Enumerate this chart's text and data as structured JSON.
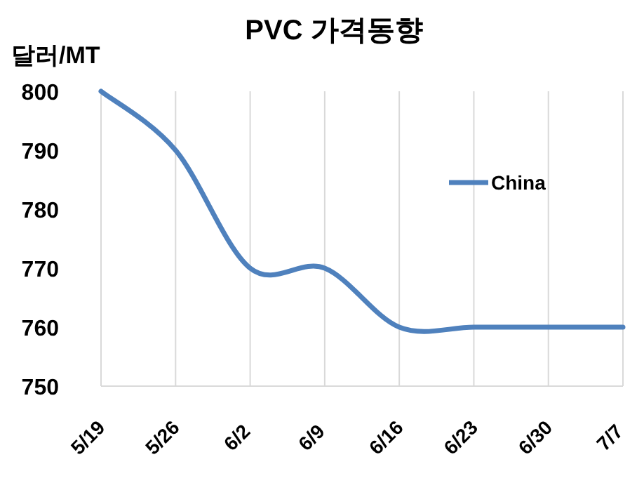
{
  "chart_data": {
    "type": "line",
    "title": "PVC 가격동향",
    "ylabel": "달러/MT",
    "categories": [
      "5/19",
      "5/26",
      "6/2",
      "6/9",
      "6/16",
      "6/23",
      "6/30",
      "7/7"
    ],
    "series": [
      {
        "name": "China",
        "color": "#4f81bd",
        "values": [
          800,
          790,
          770,
          770,
          760,
          760,
          760,
          760
        ]
      }
    ],
    "ylim": [
      750,
      800
    ],
    "yticks": [
      750,
      760,
      770,
      780,
      790,
      800
    ],
    "grid": "x",
    "legend": "right",
    "marker": "none",
    "line_style": "solid"
  }
}
